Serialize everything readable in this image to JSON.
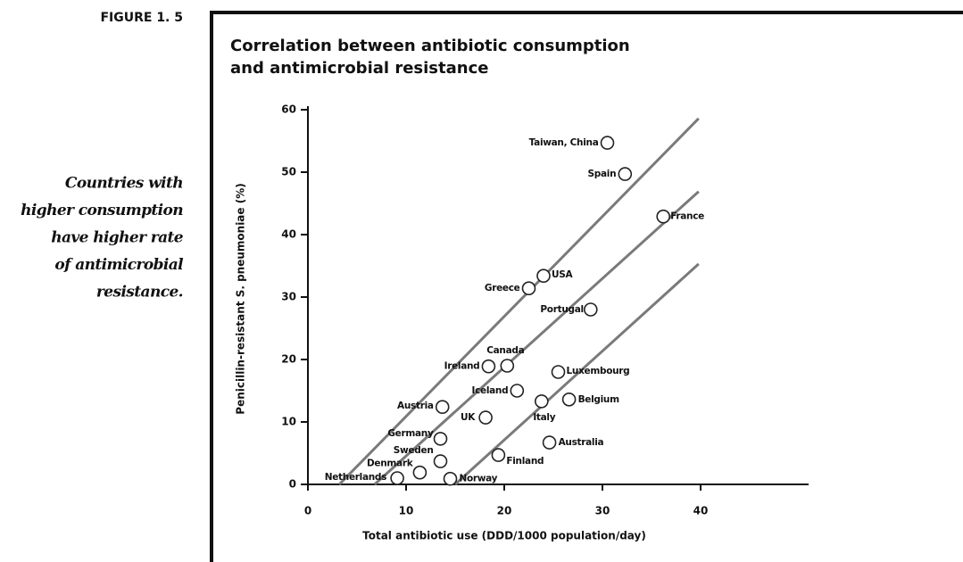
{
  "figure_label": "FIGURE 1. 5",
  "caption": [
    "Countries with",
    "higher consumption",
    "have higher rate",
    "of antimicrobial",
    "resistance."
  ],
  "chart_data": {
    "type": "scatter",
    "title": [
      "Correlation between antibiotic consumption",
      "and antimicrobial resistance"
    ],
    "x_label": "Total antibiotic use (DDD/1000 population/day)",
    "y_label": "Penicillin-resistant S. pneumoniae (%)",
    "xlim": [
      0,
      51
    ],
    "ylim": [
      0,
      60
    ],
    "xticks": [
      0,
      10,
      20,
      30,
      40
    ],
    "yticks": [
      0,
      10,
      20,
      30,
      40,
      50,
      60
    ],
    "color": "#222222",
    "line_color": "#7a7a7a",
    "series": [
      {
        "names": [
          "Taiwan, China",
          "Spain",
          "France",
          "USA",
          "Greece",
          "Portugal",
          "Canada",
          "Ireland",
          "Luxembourg",
          "Iceland",
          "Italy",
          "Belgium",
          "Austria",
          "UK",
          "Germany",
          "Australia",
          "Sweden",
          "Finland",
          "Denmark",
          "Netherlands",
          "Norway"
        ],
        "x": [
          30.5,
          32.3,
          36.2,
          24.0,
          22.5,
          28.8,
          20.3,
          18.4,
          25.5,
          21.3,
          23.8,
          26.6,
          13.7,
          18.1,
          13.5,
          24.6,
          13.5,
          19.4,
          11.4,
          9.1,
          14.5
        ],
        "values": [
          54.7,
          49.7,
          42.9,
          33.4,
          31.4,
          28,
          19,
          18.9,
          18,
          15,
          13.3,
          13.6,
          12.4,
          10.7,
          7.3,
          6.7,
          3.7,
          4.7,
          1.9,
          1,
          0.9
        ]
      }
    ],
    "lines": [
      {
        "x": [
          3.2,
          39.8
        ],
        "values": [
          0,
          58.6
        ]
      },
      {
        "x": [
          6.8,
          39.8
        ],
        "values": [
          0,
          46.9
        ]
      },
      {
        "x": [
          15,
          39.8
        ],
        "values": [
          0,
          35.3
        ]
      }
    ]
  }
}
